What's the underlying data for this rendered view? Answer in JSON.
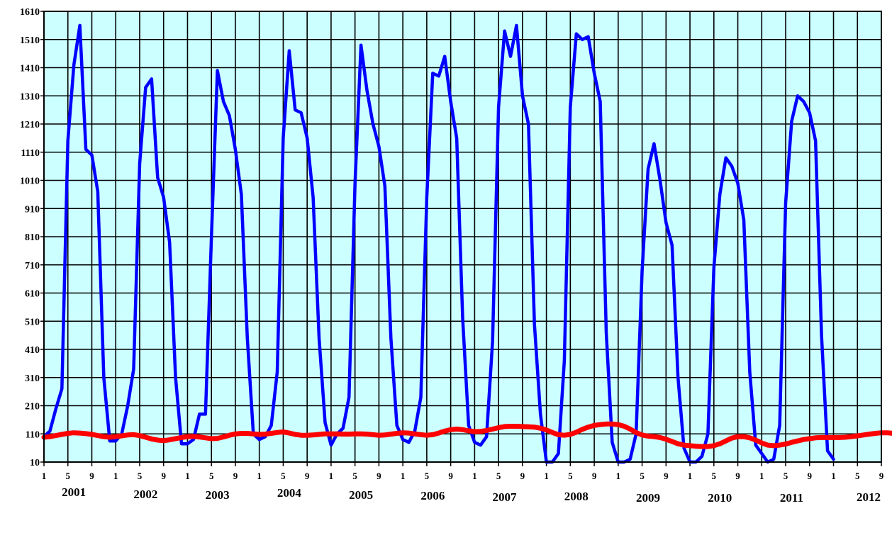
{
  "chart_data": {
    "type": "line",
    "title": "",
    "xlabel": "",
    "ylabel": "",
    "ylim": [
      10,
      1610
    ],
    "y_ticks": [
      10,
      110,
      210,
      310,
      410,
      510,
      610,
      710,
      810,
      910,
      1010,
      1110,
      1210,
      1310,
      1410,
      1510,
      1610
    ],
    "x_tick_labels": [
      "1",
      "5",
      "9",
      "1",
      "5",
      "9",
      "1",
      "5",
      "9",
      "1",
      "5",
      "9",
      "1",
      "5",
      "9",
      "1",
      "5",
      "9",
      "1",
      "5",
      "9",
      "1",
      "5",
      "9",
      "1",
      "5",
      "9",
      "1",
      "5",
      "9",
      "1",
      "5",
      "9",
      "1",
      "5",
      "9",
      "1",
      "5"
    ],
    "year_labels": [
      "2001",
      "2002",
      "2003",
      "2004",
      "2005",
      "2006",
      "2007",
      "2008",
      "2009",
      "2010",
      "2011",
      "2012"
    ],
    "grid": true,
    "plot_background": "#ccffff",
    "series": [
      {
        "color": "#0000ff",
        "values": [
          100,
          120,
          200,
          270,
          1150,
          1420,
          1560,
          1120,
          1100,
          970,
          310,
          85,
          85,
          110,
          210,
          340,
          1070,
          1340,
          1370,
          1020,
          950,
          790,
          310,
          75,
          75,
          90,
          180,
          180,
          810,
          1400,
          1290,
          1240,
          1120,
          960,
          450,
          110,
          90,
          100,
          140,
          330,
          1160,
          1470,
          1260,
          1250,
          1160,
          950,
          450,
          150,
          70,
          110,
          130,
          240,
          1000,
          1490,
          1330,
          1210,
          1130,
          990,
          450,
          140,
          90,
          80,
          120,
          240,
          950,
          1390,
          1380,
          1450,
          1290,
          1160,
          520,
          140,
          80,
          70,
          100,
          440,
          1270,
          1540,
          1450,
          1560,
          1310,
          1210,
          500,
          180,
          10,
          10,
          40,
          370,
          1270,
          1530,
          1510,
          1520,
          1390,
          1290,
          470,
          80,
          10,
          10,
          20,
          110,
          690,
          1050,
          1140,
          1010,
          860,
          780,
          310,
          60,
          10,
          10,
          30,
          110,
          700,
          960,
          1090,
          1060,
          1000,
          870,
          330,
          70,
          40,
          10,
          20,
          140,
          930,
          1220,
          1310,
          1290,
          1250,
          1150,
          460,
          50,
          20
        ]
      },
      {
        "color": "#ff0000",
        "values": [
          98,
          100,
          104,
          108,
          112,
          114,
          113,
          111,
          108,
          104,
          100,
          98,
          100,
          103,
          106,
          107,
          104,
          98,
          92,
          88,
          86,
          89,
          93,
          97,
          100,
          101,
          99,
          96,
          93,
          94,
          99,
          105,
          110,
          112,
          112,
          110,
          108,
          109,
          112,
          115,
          117,
          113,
          108,
          105,
          105,
          106,
          108,
          110,
          110,
          110,
          109,
          109,
          110,
          110,
          109,
          107,
          105,
          106,
          109,
          112,
          114,
          113,
          110,
          107,
          105,
          107,
          113,
          120,
          125,
          127,
          125,
          121,
          118,
          119,
          122,
          127,
          132,
          136,
          137,
          137,
          136,
          135,
          134,
          130,
          124,
          115,
          107,
          105,
          108,
          116,
          126,
          134,
          140,
          143,
          145,
          145,
          143,
          137,
          127,
          115,
          106,
          102,
          100,
          97,
          91,
          83,
          75,
          70,
          68,
          66,
          65,
          65,
          68,
          75,
          85,
          95,
          100,
          100,
          96,
          88,
          78,
          70,
          68,
          70,
          74,
          80,
          85,
          90,
          93,
          96,
          97,
          97,
          97,
          97,
          98,
          100,
          103,
          106,
          109,
          112,
          114,
          114,
          112,
          105,
          97,
          88
        ]
      }
    ]
  }
}
